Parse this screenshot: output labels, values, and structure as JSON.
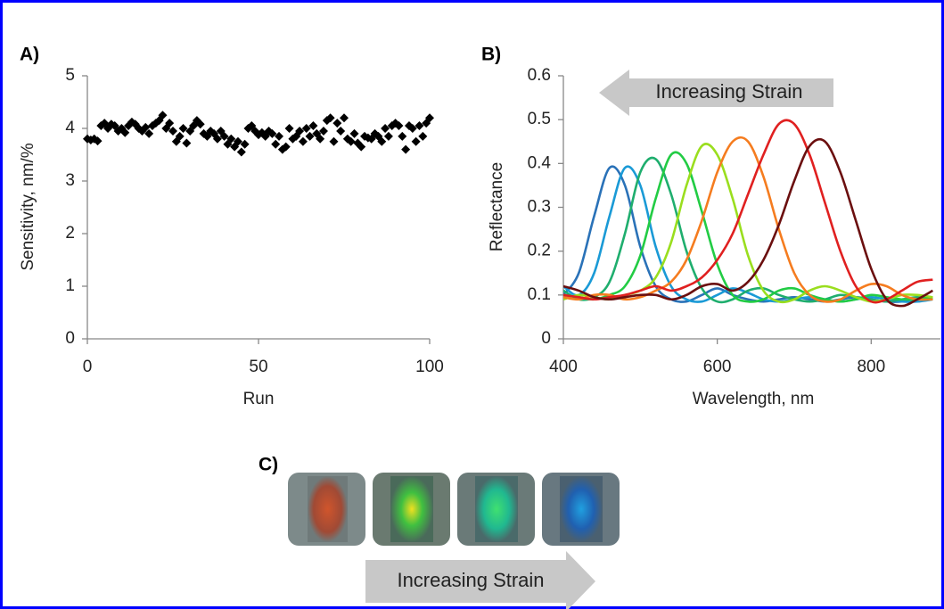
{
  "chart_data": [
    {
      "type": "scatter",
      "panel_label": "A)",
      "xlabel": "Run",
      "ylabel": "Sensitivity, nm/%",
      "xlim": [
        0,
        100
      ],
      "ylim": [
        0,
        5
      ],
      "xticks": [
        0,
        50,
        100
      ],
      "yticks": [
        0,
        1,
        2,
        3,
        4,
        5
      ],
      "color": "#000000",
      "marker": "diamond",
      "x": [
        0,
        1,
        2,
        3,
        4,
        5,
        6,
        7,
        8,
        9,
        10,
        11,
        12,
        13,
        14,
        15,
        16,
        17,
        18,
        19,
        20,
        21,
        22,
        23,
        24,
        25,
        26,
        27,
        28,
        29,
        30,
        31,
        32,
        33,
        34,
        35,
        36,
        37,
        38,
        39,
        40,
        41,
        42,
        43,
        44,
        45,
        46,
        47,
        48,
        49,
        50,
        51,
        52,
        53,
        54,
        55,
        56,
        57,
        58,
        59,
        60,
        61,
        62,
        63,
        64,
        65,
        66,
        67,
        68,
        69,
        70,
        71,
        72,
        73,
        74,
        75,
        76,
        77,
        78,
        79,
        80,
        81,
        82,
        83,
        84,
        85,
        86,
        87,
        88,
        89,
        90,
        91,
        92,
        93,
        94,
        95,
        96,
        97,
        98,
        99,
        100
      ],
      "values": [
        3.8,
        3.78,
        3.8,
        3.76,
        4.05,
        4.1,
        4.0,
        4.08,
        4.05,
        3.95,
        4.0,
        3.92,
        4.05,
        4.12,
        4.08,
        4.0,
        3.95,
        4.02,
        3.9,
        4.05,
        4.1,
        4.15,
        4.25,
        4.0,
        4.1,
        3.95,
        3.75,
        3.85,
        4.0,
        3.72,
        3.95,
        4.05,
        4.15,
        4.08,
        3.9,
        3.85,
        3.95,
        3.9,
        3.8,
        3.95,
        3.85,
        3.7,
        3.8,
        3.65,
        3.75,
        3.55,
        3.7,
        4.0,
        4.05,
        3.95,
        3.88,
        3.92,
        3.85,
        3.95,
        3.9,
        3.7,
        3.85,
        3.6,
        3.65,
        4.0,
        3.8,
        3.85,
        3.95,
        3.75,
        4.0,
        3.85,
        4.05,
        3.9,
        3.8,
        3.95,
        4.15,
        4.2,
        3.75,
        4.1,
        3.95,
        4.2,
        3.8,
        3.75,
        3.9,
        3.72,
        3.65,
        3.85,
        3.82,
        3.8,
        3.9,
        3.85,
        3.75,
        4.0,
        3.85,
        4.05,
        4.1,
        4.05,
        3.85,
        3.6,
        4.05,
        4.0,
        3.75,
        4.05,
        3.85,
        4.1,
        4.2
      ]
    },
    {
      "type": "line",
      "panel_label": "B)",
      "annotation": "Increasing Strain",
      "xlabel": "Wavelength, nm",
      "ylabel": "Reflectance",
      "xlim": [
        400,
        890
      ],
      "ylim": [
        0,
        0.6
      ],
      "xticks": [
        400,
        600,
        800
      ],
      "yticks": [
        0,
        0.1,
        0.2,
        0.3,
        0.4,
        0.5,
        0.6
      ],
      "x": [
        400,
        420,
        440,
        460,
        480,
        500,
        520,
        540,
        560,
        580,
        600,
        620,
        640,
        660,
        680,
        700,
        720,
        740,
        760,
        780,
        800,
        820,
        840,
        860,
        880
      ],
      "series": [
        {
          "color": "#2a72b8",
          "values": [
            0.1,
            0.15,
            0.28,
            0.39,
            0.35,
            0.21,
            0.12,
            0.09,
            0.085,
            0.1,
            0.115,
            0.1,
            0.09,
            0.085,
            0.09,
            0.095,
            0.09,
            0.085,
            0.09,
            0.095,
            0.09,
            0.085,
            0.085,
            0.09,
            0.09
          ]
        },
        {
          "color": "#1a9ad6",
          "values": [
            0.12,
            0.1,
            0.15,
            0.28,
            0.39,
            0.35,
            0.21,
            0.12,
            0.09,
            0.085,
            0.1,
            0.115,
            0.105,
            0.09,
            0.085,
            0.09,
            0.095,
            0.09,
            0.085,
            0.09,
            0.095,
            0.09,
            0.085,
            0.085,
            0.09
          ]
        },
        {
          "color": "#1fae6e",
          "values": [
            0.11,
            0.09,
            0.095,
            0.13,
            0.24,
            0.38,
            0.41,
            0.33,
            0.2,
            0.115,
            0.085,
            0.09,
            0.11,
            0.115,
            0.1,
            0.09,
            0.085,
            0.09,
            0.1,
            0.095,
            0.09,
            0.085,
            0.09,
            0.095,
            0.09
          ]
        },
        {
          "color": "#22cc44",
          "values": [
            0.1,
            0.095,
            0.09,
            0.1,
            0.12,
            0.19,
            0.32,
            0.42,
            0.4,
            0.29,
            0.17,
            0.1,
            0.085,
            0.09,
            0.11,
            0.115,
            0.1,
            0.09,
            0.085,
            0.09,
            0.1,
            0.095,
            0.09,
            0.09,
            0.095
          ]
        },
        {
          "color": "#9ade1e",
          "values": [
            0.09,
            0.1,
            0.095,
            0.09,
            0.1,
            0.11,
            0.14,
            0.22,
            0.35,
            0.44,
            0.42,
            0.32,
            0.19,
            0.11,
            0.085,
            0.09,
            0.11,
            0.12,
            0.11,
            0.095,
            0.085,
            0.09,
            0.1,
            0.1,
            0.095
          ]
        },
        {
          "color": "#f57c1f",
          "values": [
            0.095,
            0.09,
            0.1,
            0.1,
            0.09,
            0.095,
            0.11,
            0.13,
            0.18,
            0.27,
            0.38,
            0.45,
            0.45,
            0.37,
            0.25,
            0.15,
            0.1,
            0.085,
            0.09,
            0.11,
            0.125,
            0.12,
            0.1,
            0.09,
            0.09
          ]
        },
        {
          "color": "#e02020",
          "values": [
            0.1,
            0.095,
            0.09,
            0.095,
            0.1,
            0.11,
            0.12,
            0.11,
            0.12,
            0.14,
            0.18,
            0.24,
            0.33,
            0.42,
            0.49,
            0.49,
            0.42,
            0.31,
            0.2,
            0.12,
            0.085,
            0.09,
            0.11,
            0.13,
            0.135
          ]
        },
        {
          "color": "#6b0f0f",
          "values": [
            0.12,
            0.11,
            0.095,
            0.09,
            0.095,
            0.1,
            0.1,
            0.09,
            0.1,
            0.12,
            0.125,
            0.11,
            0.13,
            0.18,
            0.26,
            0.36,
            0.44,
            0.45,
            0.38,
            0.27,
            0.16,
            0.09,
            0.075,
            0.09,
            0.11
          ]
        }
      ]
    }
  ],
  "panel_c": {
    "label": "C)",
    "annotation": "Increasing Strain"
  }
}
